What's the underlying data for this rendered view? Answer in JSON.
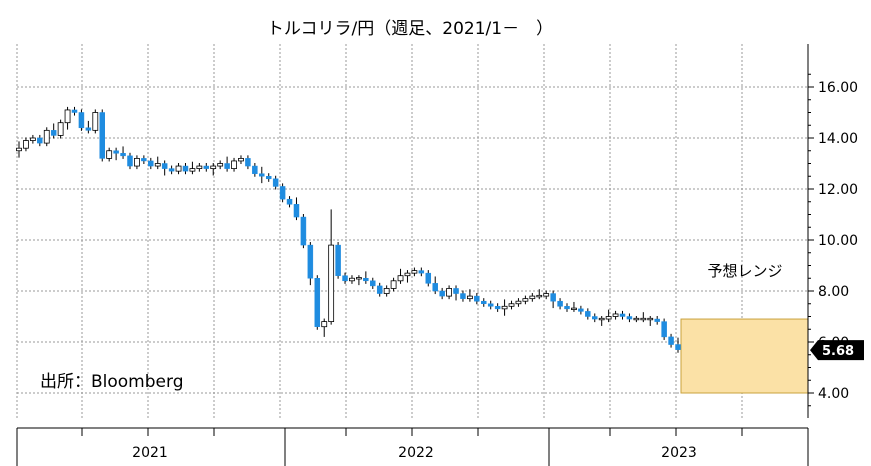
{
  "title": "トルコリラ/円（週足、2021/1－　）",
  "source_label": "出所：Bloomberg",
  "forecast_label": "予想レンジ",
  "colors": {
    "up_candle_fill": "#ffffff",
    "down_candle_fill": "#1f8ce0",
    "candle_outline": "#000000",
    "forecast_fill": "#fbe1a6",
    "forecast_stroke": "#c9a23c",
    "grid": "#9a9a9a",
    "last_price_badge": "#000000"
  },
  "chart_data": {
    "type": "candlestick",
    "title": "トルコリラ/円（週足、2021/1－　）",
    "ylim": [
      3.0,
      17.3
    ],
    "y_ticks": [
      "16.00",
      "14.00",
      "12.00",
      "10.00",
      "8.00",
      "6.00",
      "4.00"
    ],
    "y_tick_values": [
      16,
      14,
      12,
      10,
      8,
      6,
      4
    ],
    "x_labels": [
      "2021",
      "2022",
      "2023"
    ],
    "y_axis_side": "right",
    "grid": true,
    "last_price": 5.68,
    "last_price_label": "5.68",
    "forecast_range": {
      "low": 4.0,
      "high": 6.9,
      "label": "予想レンジ"
    },
    "closes": [
      13.6,
      13.9,
      14.0,
      13.8,
      14.3,
      14.1,
      14.6,
      15.1,
      15.0,
      14.4,
      14.3,
      15.0,
      13.2,
      13.5,
      13.4,
      13.3,
      12.9,
      13.2,
      13.1,
      12.9,
      13.0,
      12.8,
      12.7,
      12.9,
      12.7,
      12.8,
      12.9,
      12.8,
      12.9,
      13.0,
      12.8,
      13.1,
      13.2,
      12.9,
      12.6,
      12.5,
      12.4,
      12.1,
      11.6,
      11.4,
      10.9,
      9.8,
      8.5,
      6.6,
      6.8,
      9.8,
      8.6,
      8.4,
      8.5,
      8.5,
      8.4,
      8.2,
      7.9,
      8.1,
      8.4,
      8.6,
      8.7,
      8.8,
      8.7,
      8.3,
      8.0,
      7.8,
      8.1,
      7.9,
      7.7,
      7.8,
      7.6,
      7.5,
      7.4,
      7.3,
      7.4,
      7.5,
      7.6,
      7.7,
      7.8,
      7.8,
      7.9,
      7.6,
      7.4,
      7.3,
      7.3,
      7.2,
      7.0,
      6.9,
      6.9,
      7.0,
      7.1,
      7.0,
      6.9,
      6.9,
      6.9,
      6.9,
      6.8,
      6.2,
      5.9,
      5.7
    ]
  }
}
